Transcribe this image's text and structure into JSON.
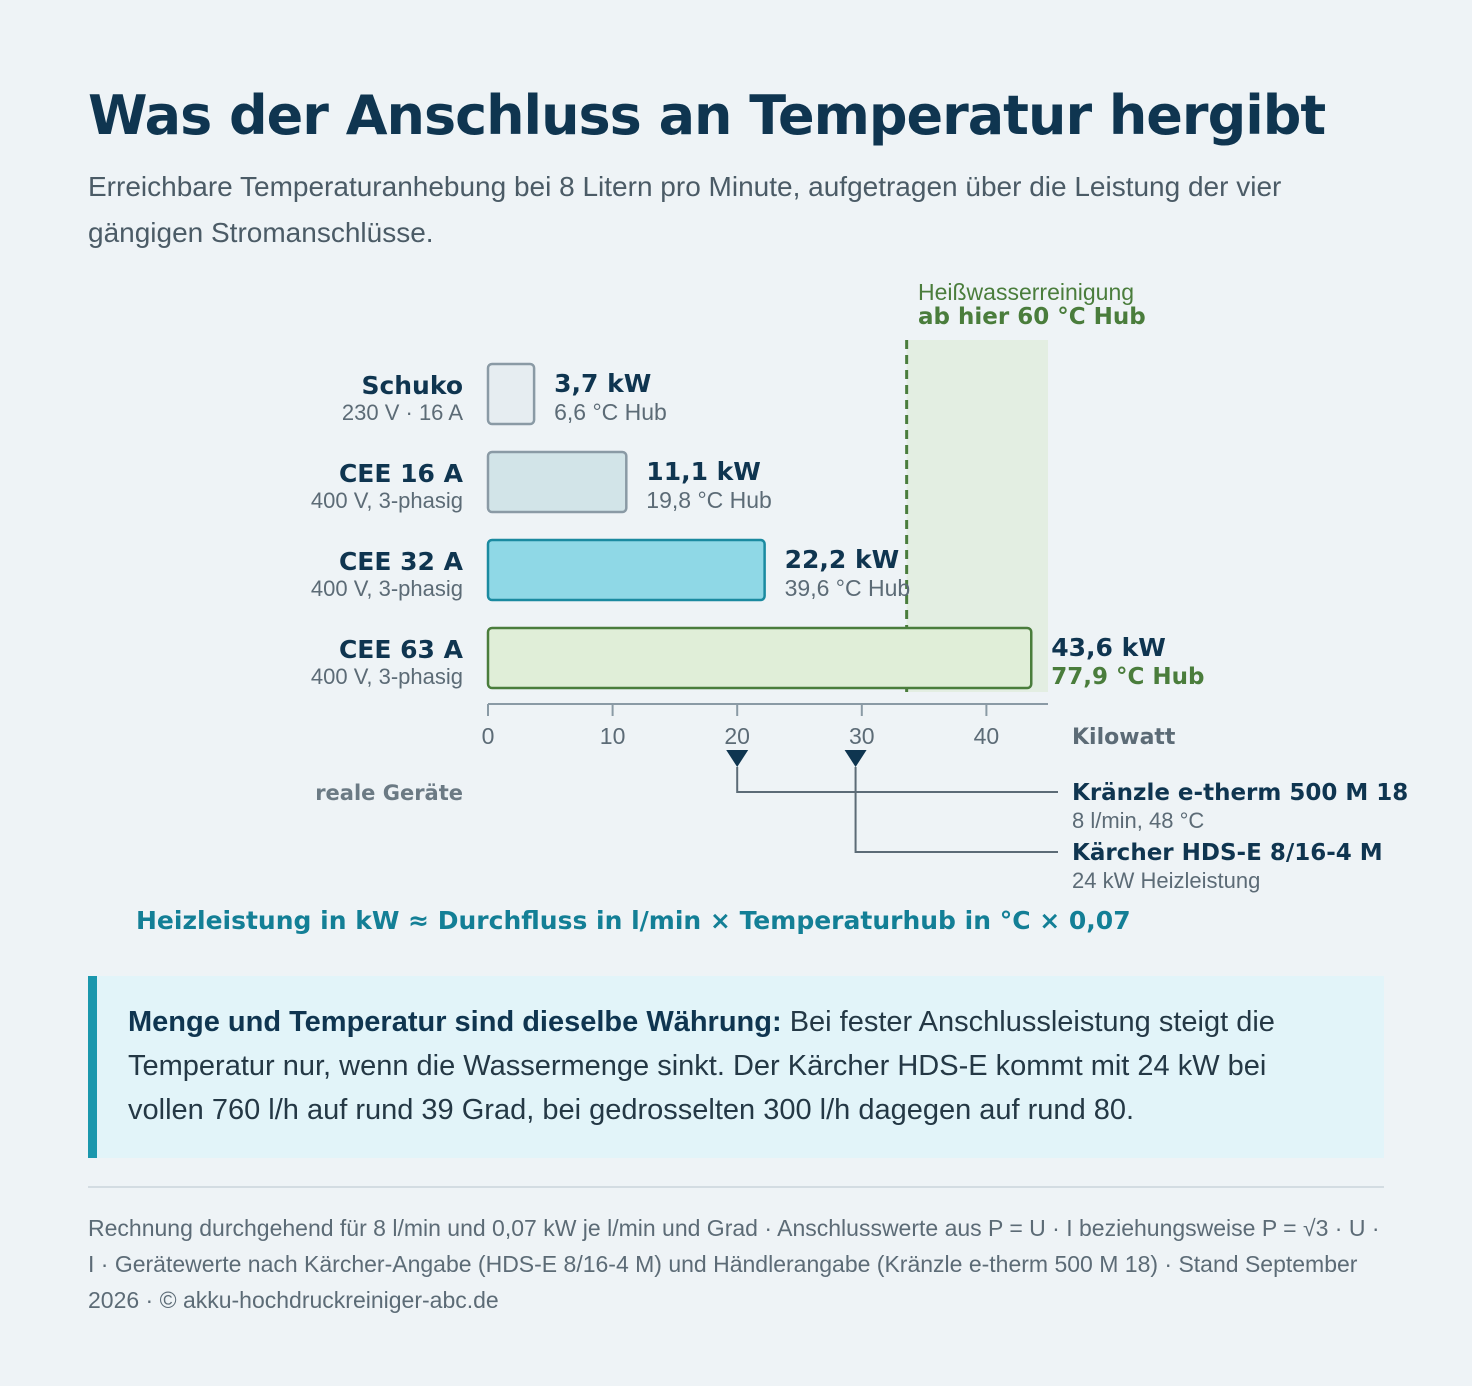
{
  "header": {
    "title": "Was der Anschluss an Temperatur hergibt",
    "subtitle": "Erreichbare Temperaturanhebung bei 8 Litern pro Minute, aufgetragen über die Leistung der vier gängigen Stromanschlüsse."
  },
  "chart_data": {
    "type": "bar",
    "orientation": "horizontal",
    "categories": [
      "Schuko",
      "CEE 16 A",
      "CEE 32 A",
      "CEE 63 A"
    ],
    "category_sublabels": [
      "230 V · 16 A",
      "400 V, 3-phasig",
      "400 V, 3-phasig",
      "400 V, 3-phasig"
    ],
    "values": [
      3.7,
      11.1,
      22.2,
      43.6
    ],
    "value_labels": [
      "3,7 kW",
      "11,1 kW",
      "22,2 kW",
      "43,6 kW"
    ],
    "hub_labels": [
      "6,6 °C Hub",
      "19,8 °C Hub",
      "39,6 °C Hub",
      "77,9 °C Hub"
    ],
    "bar_colors": [
      "#e6edf1",
      "#d2e4e8",
      "#8fd8e6",
      "#e0eed8"
    ],
    "bar_strokes": [
      "#8a9aa5",
      "#8a9aa5",
      "#1a8aa0",
      "#4a7d3c"
    ],
    "xlabel": "Kilowatt",
    "xlim": [
      0,
      45
    ],
    "xticks": [
      0,
      10,
      20,
      30,
      40
    ],
    "xtick_labels": [
      "0",
      "10",
      "20",
      "30",
      "40"
    ],
    "threshold": {
      "value": 33.6,
      "label_top": "Heißwasserreinigung",
      "label_bottom": "ab hier 60 °C Hub",
      "color": "#4a7d3c"
    },
    "real_devices_label": "reale Geräte",
    "devices": [
      {
        "name": "Kränzle e-therm 500 M 18",
        "detail": "8 l/min, 48 °C",
        "kw": 20
      },
      {
        "name": "Kärcher HDS-E 8/16-4 M",
        "detail": "24 kW Heizleistung",
        "kw": 29.5
      }
    ]
  },
  "formula": "Heizleistung in kW ≈ Durchfluss in l/min × Temperaturhub in °C × 0,07",
  "callout": {
    "bold": "Menge und Temperatur sind dieselbe Währung:",
    "text": " Bei fester Anschlussleistung steigt die Temperatur nur, wenn die Wassermenge sinkt. Der Kärcher HDS-E kommt mit 24 kW bei vollen 760 l/h auf rund 39 Grad, bei gedrosselten 300 l/h dagegen auf rund 80."
  },
  "footnote": "Rechnung durchgehend für 8 l/min und 0,07 kW je l/min und Grad · Anschlusswerte aus P = U · I beziehungsweise P = √3 · U · I · Gerätewerte nach Kärcher-Angabe (HDS-E 8/16-4 M) und Händlerangabe (Kränzle e-therm 500 M 18) · Stand September 2026 · © akku-hochdruckreiniger-abc.de"
}
